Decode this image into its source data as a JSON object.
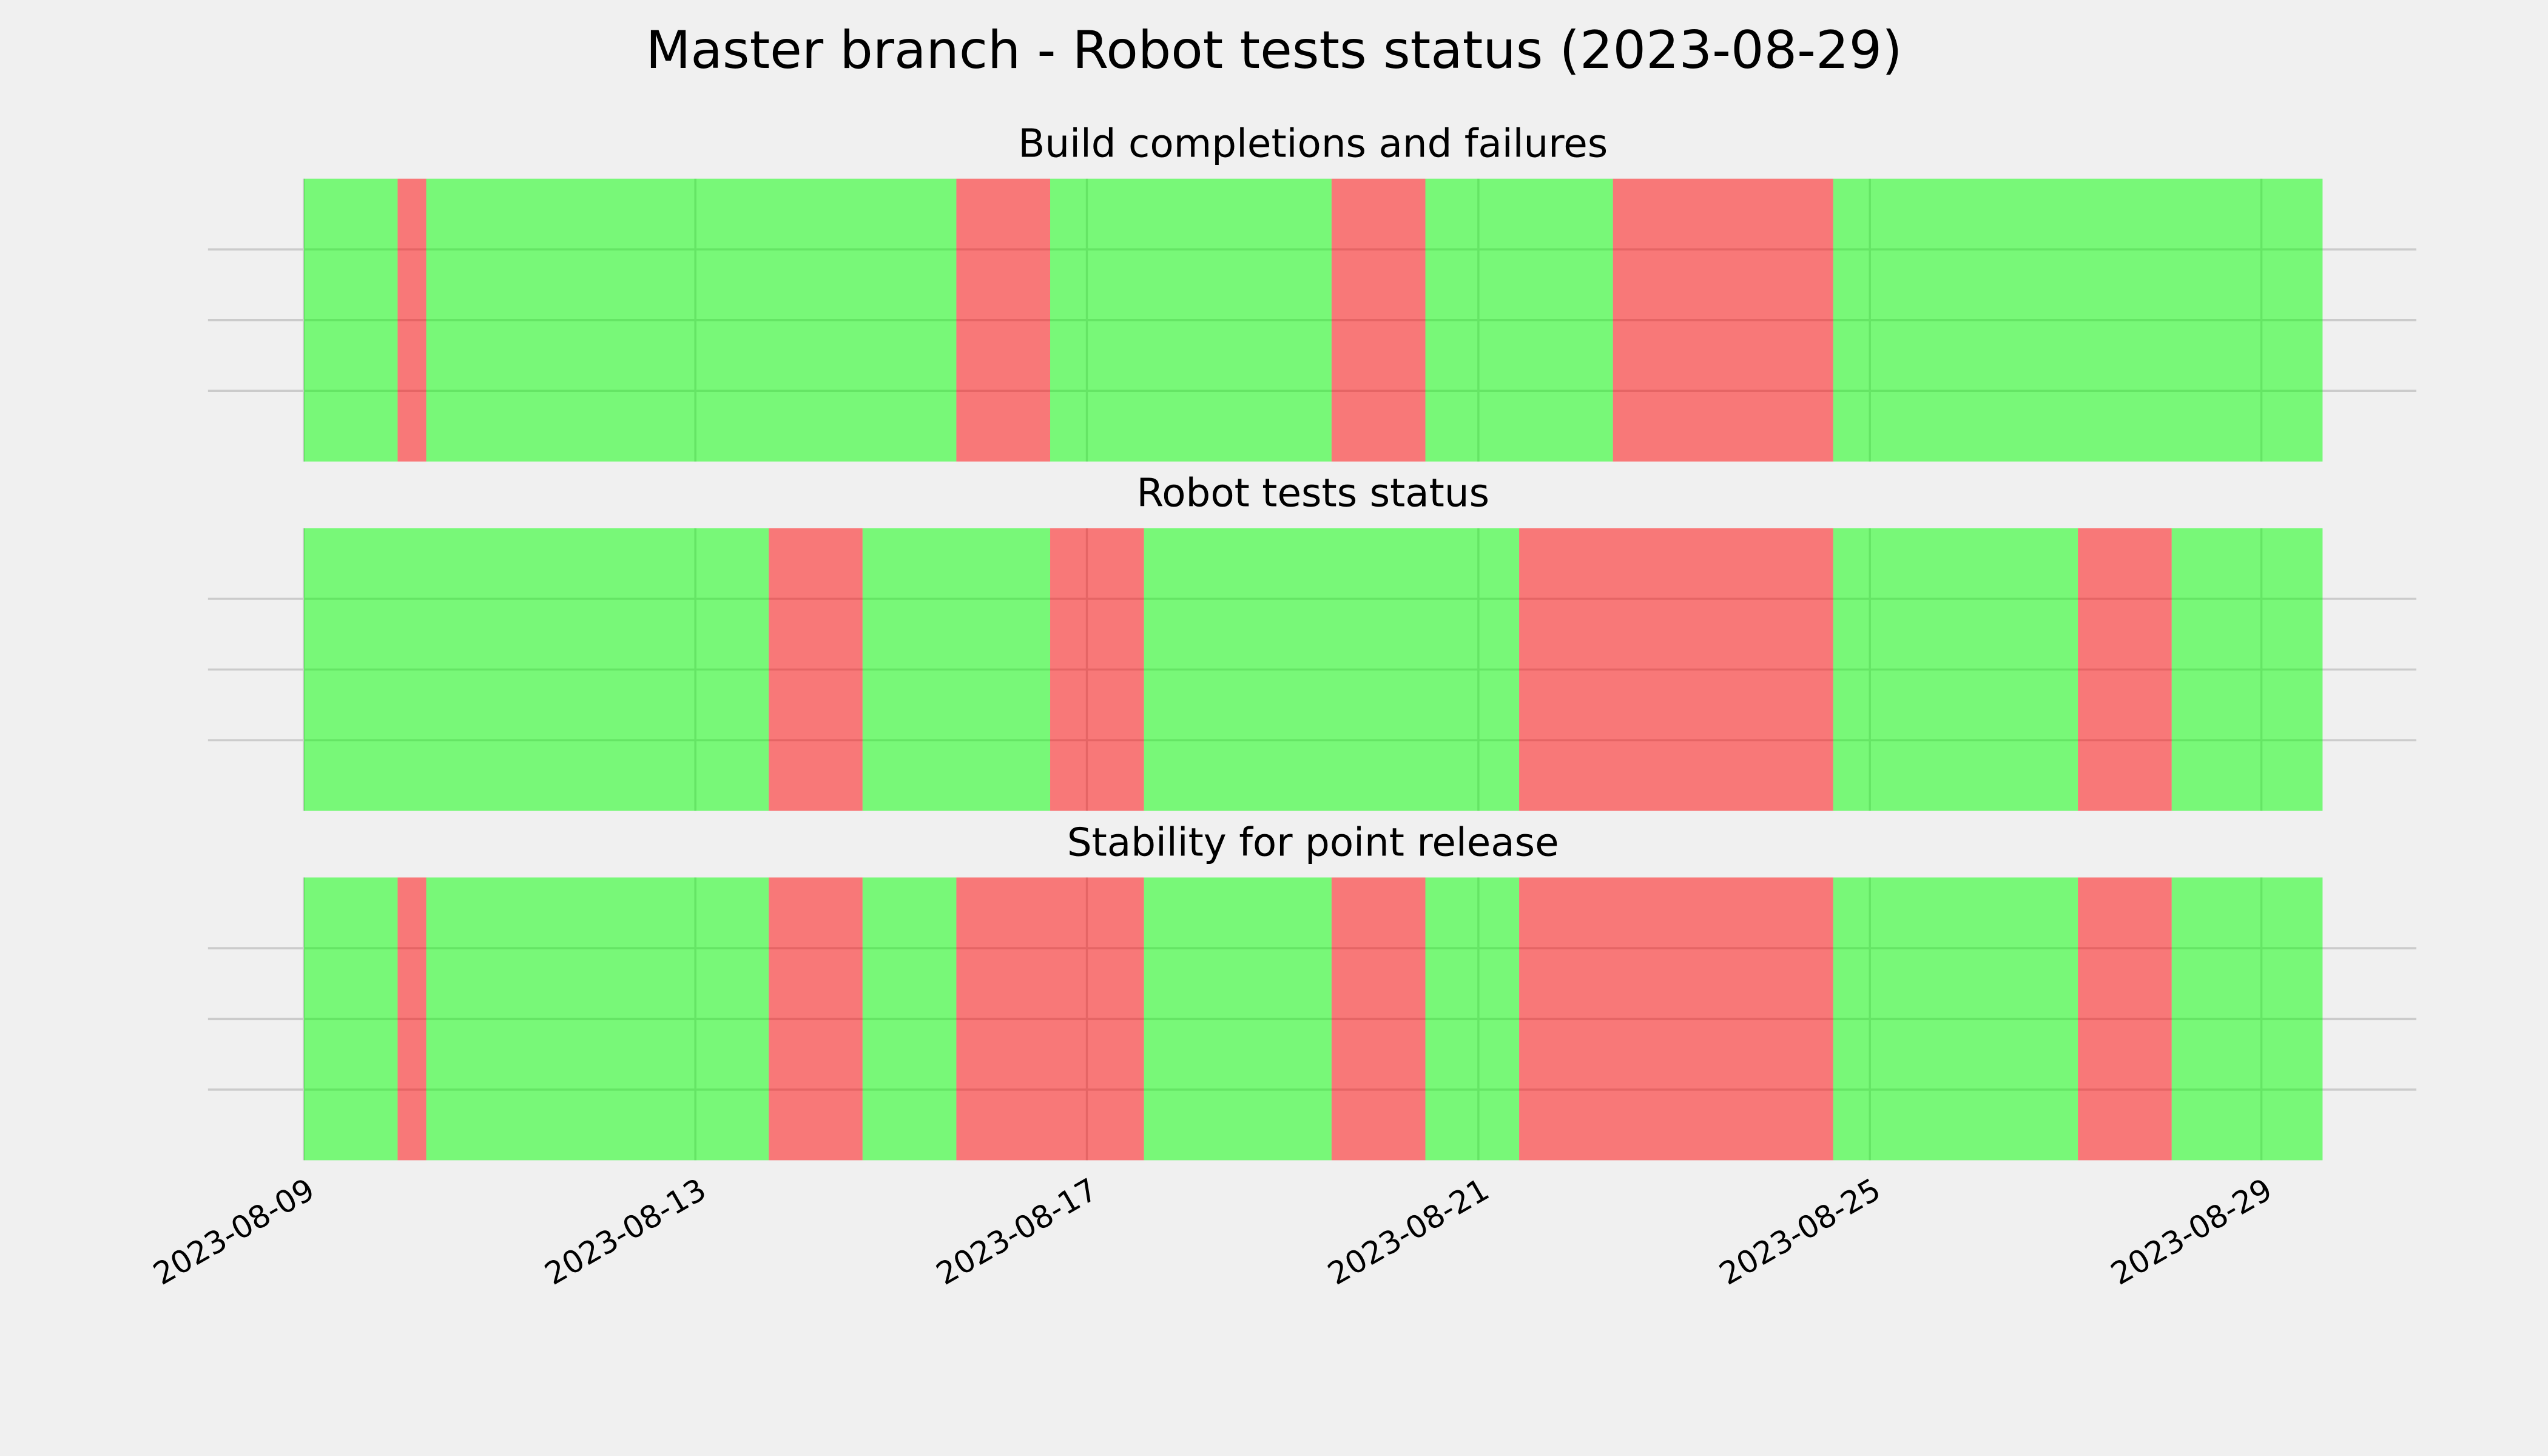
{
  "title": "Master branch - Robot tests status (2023-08-29)",
  "chart_data": [
    {
      "type": "span",
      "title": "Build completions and failures",
      "x": [
        "2023-08-09T00:00",
        "2023-08-09T23:00",
        "2023-08-10T06:00",
        "2023-08-15T16:00",
        "2023-08-16T15:00",
        "2023-08-19T12:00",
        "2023-08-20T11:00",
        "2023-08-22T09:00",
        "2023-08-24T15:00",
        "2023-08-29T15:00"
      ],
      "colors": [
        "#00ff00",
        "#ff0000",
        "#00ff00",
        "#ff0000",
        "#00ff00",
        "#ff0000",
        "#00ff00",
        "#ff0000",
        "#00ff00"
      ],
      "alpha": 0.5,
      "xlim": [
        "2023-08-08T00:30",
        "2023-08-30T14:00"
      ],
      "xticks": [
        "2023-08-09",
        "2023-08-13",
        "2023-08-17",
        "2023-08-21",
        "2023-08-25",
        "2023-08-29"
      ],
      "ylim": [
        0,
        1
      ],
      "yticks": [
        0.25,
        0.5,
        0.75
      ],
      "grid": true
    },
    {
      "type": "span",
      "title": "Robot tests status",
      "x": [
        "2023-08-09T00:00",
        "2023-08-13T18:00",
        "2023-08-14T17:00",
        "2023-08-16T15:00",
        "2023-08-17T14:00",
        "2023-08-21T10:00",
        "2023-08-24T15:00",
        "2023-08-27T03:00",
        "2023-08-28T02:00",
        "2023-08-29T15:00"
      ],
      "colors": [
        "#00ff00",
        "#ff0000",
        "#00ff00",
        "#ff0000",
        "#00ff00",
        "#ff0000",
        "#00ff00",
        "#ff0000",
        "#00ff00"
      ],
      "alpha": 0.5,
      "xlim": [
        "2023-08-08T00:30",
        "2023-08-30T14:00"
      ],
      "xticks": [
        "2023-08-09",
        "2023-08-13",
        "2023-08-17",
        "2023-08-21",
        "2023-08-25",
        "2023-08-29"
      ],
      "ylim": [
        0,
        1
      ],
      "yticks": [
        0.25,
        0.5,
        0.75
      ],
      "grid": true
    },
    {
      "type": "span",
      "title": "Stability for point release",
      "x": [
        "2023-08-09T00:00",
        "2023-08-09T23:00",
        "2023-08-10T06:00",
        "2023-08-13T18:00",
        "2023-08-14T17:00",
        "2023-08-15T16:00",
        "2023-08-17T14:00",
        "2023-08-19T12:00",
        "2023-08-20T11:00",
        "2023-08-21T10:00",
        "2023-08-24T15:00",
        "2023-08-27T03:00",
        "2023-08-28T02:00",
        "2023-08-29T15:00"
      ],
      "colors": [
        "#00ff00",
        "#ff0000",
        "#00ff00",
        "#ff0000",
        "#00ff00",
        "#ff0000",
        "#00ff00",
        "#ff0000",
        "#00ff00",
        "#ff0000",
        "#00ff00",
        "#ff0000",
        "#00ff00"
      ],
      "alpha": 0.5,
      "xlim": [
        "2023-08-08T00:30",
        "2023-08-30T14:00"
      ],
      "xticks": [
        "2023-08-09",
        "2023-08-13",
        "2023-08-17",
        "2023-08-21",
        "2023-08-25",
        "2023-08-29"
      ],
      "ylim": [
        0,
        1
      ],
      "yticks": [
        0.25,
        0.5,
        0.75
      ],
      "grid": true
    }
  ]
}
